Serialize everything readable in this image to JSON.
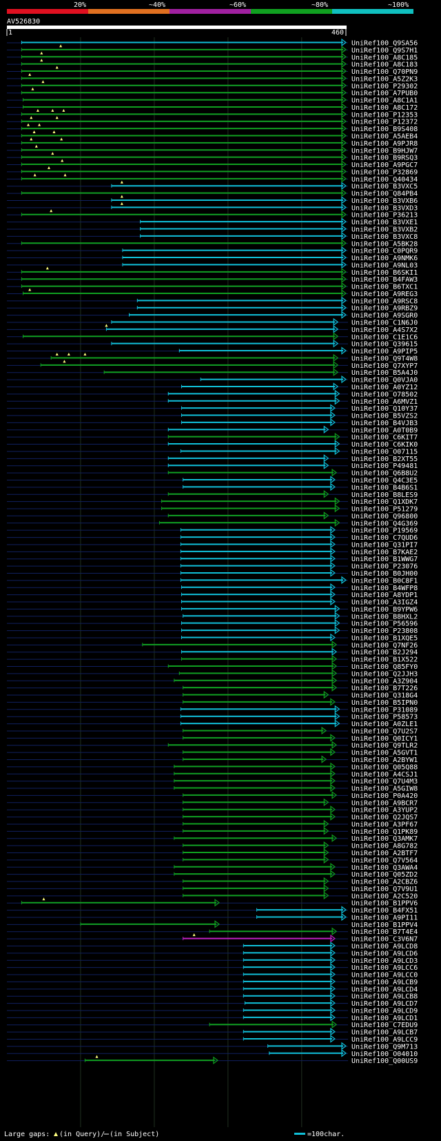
{
  "scale": {
    "labels": [
      "20%",
      "~40%",
      "~60%",
      "~80%",
      "~100%"
    ],
    "colors": [
      "#e01020",
      "#e07020",
      "#a020a0",
      "#10a020",
      "#10c0c0"
    ]
  },
  "query": {
    "name": "AV526830",
    "start": "1",
    "length": 460,
    "length_label": "460"
  },
  "legend": {
    "gaps_label": "Large gaps:",
    "query_gap": "(in Query)/",
    "subject_gap": "(in Subject)",
    "scale_label": "=100char."
  },
  "colors": {
    "green": "#10a020",
    "cyan": "#10c0d8",
    "magenta": "#c020c0",
    "blue": "#102060"
  },
  "hits": [
    {
      "id": "UniRef100_Q9SA56",
      "s": 20,
      "e": 460,
      "c": "c",
      "a": true,
      "g": []
    },
    {
      "id": "UniRef100_Q9S7H1",
      "s": 20,
      "e": 460,
      "c": "g",
      "a": true,
      "g": [
        73
      ]
    },
    {
      "id": "UniRef100_A8C185",
      "s": 20,
      "e": 460,
      "c": "g",
      "a": true,
      "g": [
        47
      ]
    },
    {
      "id": "UniRef100_A8C183",
      "s": 20,
      "e": 460,
      "c": "g",
      "a": true,
      "g": [
        47
      ]
    },
    {
      "id": "UniRef100_Q70PN9",
      "s": 20,
      "e": 460,
      "c": "g",
      "a": true,
      "g": [
        68
      ]
    },
    {
      "id": "UniRef100_A5Z2K3",
      "s": 20,
      "e": 460,
      "c": "g",
      "a": true,
      "g": [
        31
      ]
    },
    {
      "id": "UniRef100_P29302",
      "s": 20,
      "e": 460,
      "c": "g",
      "a": true,
      "g": [
        49
      ]
    },
    {
      "id": "UniRef100_A7PUB0",
      "s": 20,
      "e": 460,
      "c": "g",
      "a": true,
      "g": [
        35
      ]
    },
    {
      "id": "UniRef100_A8C1A1",
      "s": 22,
      "e": 460,
      "c": "g",
      "a": true,
      "g": []
    },
    {
      "id": "UniRef100_A8C172",
      "s": 22,
      "e": 460,
      "c": "g",
      "a": true,
      "g": []
    },
    {
      "id": "UniRef100_P12353",
      "s": 20,
      "e": 460,
      "c": "g",
      "a": true,
      "g": [
        42,
        62,
        77
      ]
    },
    {
      "id": "UniRef100_P12372",
      "s": 20,
      "e": 460,
      "c": "g",
      "a": true,
      "g": [
        33,
        68
      ]
    },
    {
      "id": "UniRef100_B9S408",
      "s": 20,
      "e": 460,
      "c": "g",
      "a": true,
      "g": [
        29,
        44
      ]
    },
    {
      "id": "UniRef100_A5AEB4",
      "s": 20,
      "e": 460,
      "c": "g",
      "a": true,
      "g": [
        37,
        64
      ]
    },
    {
      "id": "UniRef100_A9PJR8",
      "s": 20,
      "e": 460,
      "c": "g",
      "a": true,
      "g": [
        33,
        74
      ]
    },
    {
      "id": "UniRef100_B9HJW7",
      "s": 20,
      "e": 460,
      "c": "g",
      "a": true,
      "g": [
        40
      ]
    },
    {
      "id": "UniRef100_B9RSQ3",
      "s": 20,
      "e": 460,
      "c": "g",
      "a": true,
      "g": [
        62
      ]
    },
    {
      "id": "UniRef100_A9PGC7",
      "s": 20,
      "e": 460,
      "c": "g",
      "a": true,
      "g": [
        75
      ]
    },
    {
      "id": "UniRef100_P32869",
      "s": 20,
      "e": 460,
      "c": "g",
      "a": true,
      "g": [
        57
      ]
    },
    {
      "id": "UniRef100_Q40434",
      "s": 20,
      "e": 460,
      "c": "g",
      "a": true,
      "g": [
        38,
        79
      ]
    },
    {
      "id": "UniRef100_B3VXC5",
      "s": 142,
      "e": 460,
      "c": "c",
      "a": true,
      "g": [
        156
      ]
    },
    {
      "id": "UniRef100_Q84PB4",
      "s": 20,
      "e": 460,
      "c": "g",
      "a": true,
      "g": []
    },
    {
      "id": "UniRef100_B3VXB6",
      "s": 142,
      "e": 460,
      "c": "c",
      "a": true,
      "g": [
        156
      ]
    },
    {
      "id": "UniRef100_B3VXD3",
      "s": 142,
      "e": 460,
      "c": "c",
      "a": true,
      "g": [
        156
      ]
    },
    {
      "id": "UniRef100_P36213",
      "s": 20,
      "e": 460,
      "c": "g",
      "a": true,
      "g": [
        60
      ]
    },
    {
      "id": "UniRef100_B3VXE1",
      "s": 181,
      "e": 460,
      "c": "c",
      "a": true,
      "g": []
    },
    {
      "id": "UniRef100_B3VXB2",
      "s": 181,
      "e": 460,
      "c": "c",
      "a": true,
      "g": []
    },
    {
      "id": "UniRef100_B3VXC8",
      "s": 181,
      "e": 460,
      "c": "c",
      "a": true,
      "g": []
    },
    {
      "id": "UniRef100_A5BK28",
      "s": 20,
      "e": 460,
      "c": "g",
      "a": true,
      "g": []
    },
    {
      "id": "UniRef100_C0PQR9",
      "s": 157,
      "e": 460,
      "c": "c",
      "a": true,
      "g": []
    },
    {
      "id": "UniRef100_A9NMK6",
      "s": 157,
      "e": 460,
      "c": "c",
      "a": true,
      "g": []
    },
    {
      "id": "UniRef100_A9NL03",
      "s": 157,
      "e": 460,
      "c": "c",
      "a": true,
      "g": []
    },
    {
      "id": "UniRef100_B6SKI1",
      "s": 20,
      "e": 460,
      "c": "g",
      "a": true,
      "g": [
        55
      ]
    },
    {
      "id": "UniRef100_B4FAW3",
      "s": 20,
      "e": 460,
      "c": "g",
      "a": true,
      "g": []
    },
    {
      "id": "UniRef100_B6TXC1",
      "s": 20,
      "e": 460,
      "c": "g",
      "a": true,
      "g": []
    },
    {
      "id": "UniRef100_A9REG3",
      "s": 22,
      "e": 460,
      "c": "g",
      "a": true,
      "g": [
        31
      ]
    },
    {
      "id": "UniRef100_A9RSC8",
      "s": 177,
      "e": 460,
      "c": "c",
      "a": true,
      "g": []
    },
    {
      "id": "UniRef100_A9RBZ9",
      "s": 177,
      "e": 460,
      "c": "c",
      "a": true,
      "g": []
    },
    {
      "id": "UniRef100_A9SGR0",
      "s": 166,
      "e": 460,
      "c": "c",
      "a": true,
      "g": []
    },
    {
      "id": "UniRef100_C1N6J0",
      "s": 142,
      "e": 449,
      "c": "c",
      "a": true,
      "g": []
    },
    {
      "id": "UniRef100_A4S7X2",
      "s": 135,
      "e": 449,
      "c": "c",
      "a": true,
      "g": [
        135
      ]
    },
    {
      "id": "UniRef100_C1E1C6",
      "s": 22,
      "e": 449,
      "c": "g",
      "a": true,
      "g": []
    },
    {
      "id": "UniRef100_Q39615",
      "s": 142,
      "e": 449,
      "c": "c",
      "a": true,
      "g": []
    },
    {
      "id": "UniRef100_A9PIP5",
      "s": 234,
      "e": 460,
      "c": "c",
      "a": true,
      "g": []
    },
    {
      "id": "UniRef100_Q9T4W8",
      "s": 60,
      "e": 449,
      "c": "g",
      "a": true,
      "g": [
        68,
        84,
        106
      ]
    },
    {
      "id": "UniRef100_Q7XYP7",
      "s": 46,
      "e": 449,
      "c": "g",
      "a": true,
      "g": [
        78
      ]
    },
    {
      "id": "UniRef100_B5A4J0",
      "s": 132,
      "e": 449,
      "c": "g",
      "a": true,
      "g": []
    },
    {
      "id": "UniRef100_Q0VJA0",
      "s": 263,
      "e": 460,
      "c": "c",
      "a": true,
      "g": []
    },
    {
      "id": "UniRef100_A0YZ12",
      "s": 237,
      "e": 449,
      "c": "c",
      "a": true,
      "g": []
    },
    {
      "id": "UniRef100_O78502",
      "s": 219,
      "e": 451,
      "c": "c",
      "a": true,
      "g": []
    },
    {
      "id": "UniRef100_A6MVZ1",
      "s": 219,
      "e": 451,
      "c": "c",
      "a": true,
      "g": []
    },
    {
      "id": "UniRef100_Q10Y37",
      "s": 237,
      "e": 445,
      "c": "c",
      "a": true,
      "g": []
    },
    {
      "id": "UniRef100_B5VZS2",
      "s": 237,
      "e": 445,
      "c": "c",
      "a": true,
      "g": []
    },
    {
      "id": "UniRef100_B4VJB3",
      "s": 237,
      "e": 445,
      "c": "c",
      "a": true,
      "g": []
    },
    {
      "id": "UniRef100_A0T0B9",
      "s": 219,
      "e": 436,
      "c": "c",
      "a": true,
      "g": []
    },
    {
      "id": "UniRef100_C6KIT7",
      "s": 219,
      "e": 451,
      "c": "g",
      "a": true,
      "g": []
    },
    {
      "id": "UniRef100_C6KIK0",
      "s": 219,
      "e": 451,
      "c": "c",
      "a": true,
      "g": []
    },
    {
      "id": "UniRef100_O07115",
      "s": 236,
      "e": 451,
      "c": "c",
      "a": true,
      "g": []
    },
    {
      "id": "UniRef100_B2XT55",
      "s": 219,
      "e": 436,
      "c": "c",
      "a": true,
      "g": []
    },
    {
      "id": "UniRef100_P49481",
      "s": 219,
      "e": 436,
      "c": "c",
      "a": true,
      "g": []
    },
    {
      "id": "UniRef100_Q6B8U2",
      "s": 219,
      "e": 447,
      "c": "g",
      "a": true,
      "g": []
    },
    {
      "id": "UniRef100_Q4C3E5",
      "s": 239,
      "e": 445,
      "c": "c",
      "a": true,
      "g": []
    },
    {
      "id": "UniRef100_B4B6S1",
      "s": 239,
      "e": 445,
      "c": "c",
      "a": true,
      "g": []
    },
    {
      "id": "UniRef100_B8LES9",
      "s": 219,
      "e": 436,
      "c": "g",
      "a": true,
      "g": []
    },
    {
      "id": "UniRef100_Q1XDK7",
      "s": 210,
      "e": 451,
      "c": "g",
      "a": true,
      "g": []
    },
    {
      "id": "UniRef100_P51279",
      "s": 210,
      "e": 451,
      "c": "g",
      "a": true,
      "g": []
    },
    {
      "id": "UniRef100_Q96800",
      "s": 219,
      "e": 436,
      "c": "g",
      "a": true,
      "g": []
    },
    {
      "id": "UniRef100_Q4G369",
      "s": 207,
      "e": 451,
      "c": "g",
      "a": true,
      "g": []
    },
    {
      "id": "UniRef100_P19569",
      "s": 236,
      "e": 445,
      "c": "c",
      "a": true,
      "g": []
    },
    {
      "id": "UniRef100_C7QUD6",
      "s": 236,
      "e": 445,
      "c": "c",
      "a": true,
      "g": []
    },
    {
      "id": "UniRef100_Q31PI7",
      "s": 236,
      "e": 445,
      "c": "c",
      "a": true,
      "g": []
    },
    {
      "id": "UniRef100_B7KAE2",
      "s": 236,
      "e": 445,
      "c": "c",
      "a": true,
      "g": []
    },
    {
      "id": "UniRef100_B1WWG7",
      "s": 236,
      "e": 445,
      "c": "c",
      "a": true,
      "g": []
    },
    {
      "id": "UniRef100_P23076",
      "s": 236,
      "e": 445,
      "c": "c",
      "a": true,
      "g": []
    },
    {
      "id": "UniRef100_B0JH00",
      "s": 236,
      "e": 445,
      "c": "c",
      "a": true,
      "g": []
    },
    {
      "id": "UniRef100_B0C8F1",
      "s": 236,
      "e": 460,
      "c": "c",
      "a": true,
      "g": []
    },
    {
      "id": "UniRef100_B4WFP8",
      "s": 237,
      "e": 445,
      "c": "c",
      "a": true,
      "g": []
    },
    {
      "id": "UniRef100_A8YDP1",
      "s": 237,
      "e": 445,
      "c": "c",
      "a": true,
      "g": []
    },
    {
      "id": "UniRef100_A3IGZ4",
      "s": 237,
      "e": 445,
      "c": "c",
      "a": true,
      "g": []
    },
    {
      "id": "UniRef100_B9YPW6",
      "s": 237,
      "e": 451,
      "c": "c",
      "a": true,
      "g": []
    },
    {
      "id": "UniRef100_B8HXL2",
      "s": 239,
      "e": 451,
      "c": "c",
      "a": true,
      "g": []
    },
    {
      "id": "UniRef100_P56596",
      "s": 237,
      "e": 451,
      "c": "c",
      "a": true,
      "g": []
    },
    {
      "id": "UniRef100_P23808",
      "s": 237,
      "e": 451,
      "c": "c",
      "a": true,
      "g": []
    },
    {
      "id": "UniRef100_B1XQE5",
      "s": 237,
      "e": 445,
      "c": "c",
      "a": true,
      "g": []
    },
    {
      "id": "UniRef100_Q7NF26",
      "s": 184,
      "e": 447,
      "c": "g",
      "a": true,
      "g": []
    },
    {
      "id": "UniRef100_B2J294",
      "s": 237,
      "e": 447,
      "c": "c",
      "a": true,
      "g": []
    },
    {
      "id": "UniRef100_B1X522",
      "s": 237,
      "e": 447,
      "c": "g",
      "a": true,
      "g": []
    },
    {
      "id": "UniRef100_Q85FY0",
      "s": 219,
      "e": 447,
      "c": "g",
      "a": true,
      "g": []
    },
    {
      "id": "UniRef100_Q2JJH3",
      "s": 234,
      "e": 447,
      "c": "g",
      "a": true,
      "g": []
    },
    {
      "id": "UniRef100_A3Z904",
      "s": 227,
      "e": 447,
      "c": "g",
      "a": true,
      "g": []
    },
    {
      "id": "UniRef100_B7T226",
      "s": 239,
      "e": 447,
      "c": "g",
      "a": true,
      "g": []
    },
    {
      "id": "UniRef100_Q318G4",
      "s": 239,
      "e": 436,
      "c": "g",
      "a": true,
      "g": []
    },
    {
      "id": "UniRef100_B5IPN0",
      "s": 239,
      "e": 445,
      "c": "g",
      "a": true,
      "g": []
    },
    {
      "id": "UniRef100_P31089",
      "s": 236,
      "e": 451,
      "c": "c",
      "a": true,
      "g": []
    },
    {
      "id": "UniRef100_P58573",
      "s": 236,
      "e": 451,
      "c": "c",
      "a": true,
      "g": []
    },
    {
      "id": "UniRef100_A0ZLE1",
      "s": 236,
      "e": 451,
      "c": "c",
      "a": true,
      "g": []
    },
    {
      "id": "UniRef100_Q7U2S7",
      "s": 239,
      "e": 433,
      "c": "g",
      "a": true,
      "g": []
    },
    {
      "id": "UniRef100_Q0ICY1",
      "s": 239,
      "e": 445,
      "c": "g",
      "a": true,
      "g": []
    },
    {
      "id": "UniRef100_Q9TLR2",
      "s": 219,
      "e": 447,
      "c": "g",
      "a": true,
      "g": []
    },
    {
      "id": "UniRef100_A5GVT1",
      "s": 239,
      "e": 445,
      "c": "g",
      "a": true,
      "g": []
    },
    {
      "id": "UniRef100_A2BYW1",
      "s": 239,
      "e": 433,
      "c": "g",
      "a": true,
      "g": []
    },
    {
      "id": "UniRef100_Q05Q88",
      "s": 227,
      "e": 445,
      "c": "g",
      "a": true,
      "g": []
    },
    {
      "id": "UniRef100_A4CSJ1",
      "s": 227,
      "e": 445,
      "c": "g",
      "a": true,
      "g": []
    },
    {
      "id": "UniRef100_Q7U4M3",
      "s": 227,
      "e": 445,
      "c": "g",
      "a": true,
      "g": []
    },
    {
      "id": "UniRef100_A5GIW8",
      "s": 227,
      "e": 445,
      "c": "g",
      "a": true,
      "g": []
    },
    {
      "id": "UniRef100_P0A420",
      "s": 239,
      "e": 447,
      "c": "g",
      "a": true,
      "g": []
    },
    {
      "id": "UniRef100_A9BCR7",
      "s": 239,
      "e": 436,
      "c": "g",
      "a": true,
      "g": []
    },
    {
      "id": "UniRef100_A3YUP2",
      "s": 239,
      "e": 445,
      "c": "g",
      "a": true,
      "g": []
    },
    {
      "id": "UniRef100_Q2JQS7",
      "s": 239,
      "e": 445,
      "c": "g",
      "a": true,
      "g": []
    },
    {
      "id": "UniRef100_A3PF67",
      "s": 239,
      "e": 436,
      "c": "g",
      "a": true,
      "g": []
    },
    {
      "id": "UniRef100_Q1PK89",
      "s": 239,
      "e": 436,
      "c": "g",
      "a": true,
      "g": []
    },
    {
      "id": "UniRef100_Q3AMK7",
      "s": 227,
      "e": 447,
      "c": "g",
      "a": true,
      "g": []
    },
    {
      "id": "UniRef100_A8G782",
      "s": 239,
      "e": 436,
      "c": "g",
      "a": true,
      "g": []
    },
    {
      "id": "UniRef100_A2BTF7",
      "s": 239,
      "e": 436,
      "c": "g",
      "a": true,
      "g": []
    },
    {
      "id": "UniRef100_Q7V564",
      "s": 239,
      "e": 436,
      "c": "g",
      "a": true,
      "g": []
    },
    {
      "id": "UniRef100_Q3AWA4",
      "s": 227,
      "e": 445,
      "c": "g",
      "a": true,
      "g": []
    },
    {
      "id": "UniRef100_Q05ZD2",
      "s": 227,
      "e": 445,
      "c": "g",
      "a": true,
      "g": []
    },
    {
      "id": "UniRef100_A2CBZ6",
      "s": 239,
      "e": 436,
      "c": "g",
      "a": true,
      "g": []
    },
    {
      "id": "UniRef100_Q7V9U1",
      "s": 239,
      "e": 436,
      "c": "g",
      "a": true,
      "g": []
    },
    {
      "id": "UniRef100_A2C520",
      "s": 239,
      "e": 436,
      "c": "g",
      "a": true,
      "g": []
    },
    {
      "id": "UniRef100_B1PPV6",
      "s": 20,
      "e": 288,
      "c": "g",
      "a": true,
      "g": [
        50
      ]
    },
    {
      "id": "UniRef100_B4FX51",
      "s": 339,
      "e": 460,
      "c": "c",
      "a": true,
      "g": []
    },
    {
      "id": "UniRef100_A9PI11",
      "s": 339,
      "e": 460,
      "c": "c",
      "a": true,
      "g": []
    },
    {
      "id": "UniRef100_B1PPV4",
      "s": 100,
      "e": 288,
      "c": "g",
      "a": true,
      "g": []
    },
    {
      "id": "UniRef100_B7T4E4",
      "s": 275,
      "e": 447,
      "c": "g",
      "a": true,
      "g": []
    },
    {
      "id": "UniRef100_C3V6N7",
      "s": 239,
      "e": 445,
      "c": "m",
      "a": true,
      "g": [
        254
      ]
    },
    {
      "id": "UniRef100_A9LCD8",
      "s": 321,
      "e": 445,
      "c": "c",
      "a": true,
      "g": []
    },
    {
      "id": "UniRef100_A9LCD6",
      "s": 321,
      "e": 445,
      "c": "c",
      "a": true,
      "g": []
    },
    {
      "id": "UniRef100_A9LCD3",
      "s": 321,
      "e": 445,
      "c": "c",
      "a": true,
      "g": []
    },
    {
      "id": "UniRef100_A9LCC6",
      "s": 321,
      "e": 445,
      "c": "c",
      "a": true,
      "g": []
    },
    {
      "id": "UniRef100_A9LCC0",
      "s": 321,
      "e": 445,
      "c": "c",
      "a": true,
      "g": []
    },
    {
      "id": "UniRef100_A9LCB9",
      "s": 321,
      "e": 445,
      "c": "c",
      "a": true,
      "g": []
    },
    {
      "id": "UniRef100_A9LCD4",
      "s": 321,
      "e": 445,
      "c": "c",
      "a": true,
      "g": []
    },
    {
      "id": "UniRef100_A9LCB8",
      "s": 321,
      "e": 445,
      "c": "c",
      "a": true,
      "g": []
    },
    {
      "id": "UniRef100_A9LCD7",
      "s": 323,
      "e": 445,
      "c": "c",
      "a": true,
      "g": []
    },
    {
      "id": "UniRef100_A9LCD9",
      "s": 321,
      "e": 445,
      "c": "c",
      "a": true,
      "g": []
    },
    {
      "id": "UniRef100_A9LCD1",
      "s": 321,
      "e": 445,
      "c": "c",
      "a": true,
      "g": []
    },
    {
      "id": "UniRef100_C7EDU9",
      "s": 275,
      "e": 447,
      "c": "g",
      "a": true,
      "g": []
    },
    {
      "id": "UniRef100_A9LCB7",
      "s": 321,
      "e": 445,
      "c": "c",
      "a": true,
      "g": []
    },
    {
      "id": "UniRef100_A9LCC9",
      "s": 321,
      "e": 445,
      "c": "c",
      "a": true,
      "g": []
    },
    {
      "id": "UniRef100_Q9M713",
      "s": 354,
      "e": 460,
      "c": "c",
      "a": true,
      "g": []
    },
    {
      "id": "UniRef100_O04010",
      "s": 356,
      "e": 460,
      "c": "c",
      "a": true,
      "g": []
    },
    {
      "id": "UniRef100_Q00US9",
      "s": 106,
      "e": 286,
      "c": "g",
      "a": true,
      "g": [
        122
      ]
    }
  ]
}
